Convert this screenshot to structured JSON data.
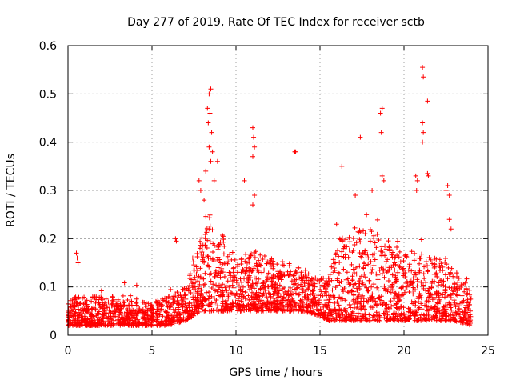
{
  "chart_data": {
    "type": "scatter",
    "title": "Day 277 of 2019, Rate Of TEC Index for receiver sctb",
    "xlabel": "GPS time / hours",
    "ylabel": "ROTI / TECUs",
    "xlim": [
      0,
      25
    ],
    "ylim": [
      0,
      0.6
    ],
    "xticks": [
      0,
      5,
      10,
      15,
      20,
      25
    ],
    "yticks": [
      0,
      0.1,
      0.2,
      0.3,
      0.4,
      0.5,
      0.6
    ],
    "xtick_labels": [
      "0",
      "5",
      "10",
      "15",
      "20",
      "25"
    ],
    "ytick_labels": [
      "0",
      "0.1",
      "0.2",
      "0.3",
      "0.4",
      "0.5",
      "0.6"
    ],
    "grid": true,
    "marker": "+",
    "color": "#ff0000",
    "series": [
      {
        "name": "ROTI",
        "envelope": {
          "hours": [
            0.0,
            0.5,
            1.0,
            2.0,
            3.0,
            4.0,
            5.0,
            6.0,
            7.0,
            7.5,
            8.0,
            8.5,
            9.0,
            10.0,
            11.0,
            12.0,
            13.0,
            14.0,
            15.0,
            15.5,
            16.0,
            17.0,
            18.0,
            19.0,
            20.0,
            21.0,
            22.0,
            23.0,
            24.0
          ],
          "typical_low": [
            0.02,
            0.02,
            0.02,
            0.02,
            0.02,
            0.02,
            0.02,
            0.02,
            0.03,
            0.04,
            0.05,
            0.05,
            0.05,
            0.05,
            0.05,
            0.05,
            0.05,
            0.05,
            0.04,
            0.03,
            0.03,
            0.03,
            0.03,
            0.03,
            0.03,
            0.03,
            0.03,
            0.03,
            0.02
          ],
          "typical_high": [
            0.07,
            0.08,
            0.08,
            0.08,
            0.08,
            0.07,
            0.07,
            0.08,
            0.1,
            0.16,
            0.22,
            0.25,
            0.22,
            0.16,
            0.18,
            0.16,
            0.15,
            0.14,
            0.12,
            0.12,
            0.2,
            0.22,
            0.22,
            0.2,
            0.17,
            0.18,
            0.16,
            0.14,
            0.1
          ]
        },
        "highlights": [
          {
            "x": 0.5,
            "y": 0.17
          },
          {
            "x": 0.55,
            "y": 0.16
          },
          {
            "x": 0.6,
            "y": 0.15
          },
          {
            "x": 6.4,
            "y": 0.2
          },
          {
            "x": 6.45,
            "y": 0.195
          },
          {
            "x": 8.3,
            "y": 0.47
          },
          {
            "x": 8.4,
            "y": 0.5
          },
          {
            "x": 8.5,
            "y": 0.51
          },
          {
            "x": 8.45,
            "y": 0.46
          },
          {
            "x": 8.35,
            "y": 0.44
          },
          {
            "x": 8.55,
            "y": 0.42
          },
          {
            "x": 8.4,
            "y": 0.39
          },
          {
            "x": 8.6,
            "y": 0.38
          },
          {
            "x": 8.5,
            "y": 0.36
          },
          {
            "x": 8.9,
            "y": 0.36
          },
          {
            "x": 8.2,
            "y": 0.34
          },
          {
            "x": 8.7,
            "y": 0.32
          },
          {
            "x": 7.8,
            "y": 0.32
          },
          {
            "x": 7.9,
            "y": 0.3
          },
          {
            "x": 8.1,
            "y": 0.28
          },
          {
            "x": 10.5,
            "y": 0.32
          },
          {
            "x": 11.0,
            "y": 0.43
          },
          {
            "x": 11.05,
            "y": 0.41
          },
          {
            "x": 11.1,
            "y": 0.39
          },
          {
            "x": 11.0,
            "y": 0.37
          },
          {
            "x": 11.1,
            "y": 0.29
          },
          {
            "x": 11.0,
            "y": 0.27
          },
          {
            "x": 13.5,
            "y": 0.38
          },
          {
            "x": 13.55,
            "y": 0.38
          },
          {
            "x": 16.3,
            "y": 0.35
          },
          {
            "x": 17.4,
            "y": 0.41
          },
          {
            "x": 17.1,
            "y": 0.29
          },
          {
            "x": 18.1,
            "y": 0.3
          },
          {
            "x": 18.6,
            "y": 0.46
          },
          {
            "x": 18.7,
            "y": 0.47
          },
          {
            "x": 18.65,
            "y": 0.42
          },
          {
            "x": 18.7,
            "y": 0.33
          },
          {
            "x": 18.8,
            "y": 0.32
          },
          {
            "x": 20.7,
            "y": 0.33
          },
          {
            "x": 20.8,
            "y": 0.32
          },
          {
            "x": 20.75,
            "y": 0.3
          },
          {
            "x": 21.1,
            "y": 0.555
          },
          {
            "x": 21.15,
            "y": 0.535
          },
          {
            "x": 21.1,
            "y": 0.44
          },
          {
            "x": 21.15,
            "y": 0.42
          },
          {
            "x": 21.1,
            "y": 0.4
          },
          {
            "x": 21.4,
            "y": 0.485
          },
          {
            "x": 21.45,
            "y": 0.33
          },
          {
            "x": 21.4,
            "y": 0.335
          },
          {
            "x": 22.6,
            "y": 0.31
          },
          {
            "x": 22.7,
            "y": 0.29
          },
          {
            "x": 22.5,
            "y": 0.3
          },
          {
            "x": 22.7,
            "y": 0.24
          },
          {
            "x": 22.8,
            "y": 0.22
          }
        ]
      }
    ]
  }
}
